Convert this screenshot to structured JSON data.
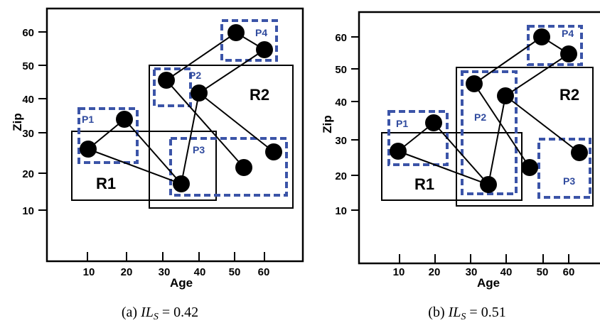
{
  "colors": {
    "partition": "#3b54a8",
    "region": "#000000",
    "point": "#000000"
  },
  "panels": [
    {
      "id": "a",
      "caption_prefix": "(a) ",
      "caption_var": "IL",
      "caption_sub": "S",
      "caption_value": " = 0.42",
      "x_label": "Age",
      "y_label": "Zip",
      "x_ticks": [
        "10",
        "20",
        "30",
        "40",
        "50",
        "60"
      ],
      "y_ticks": [
        "10",
        "20",
        "30",
        "40",
        "50",
        "60"
      ],
      "regions": [
        {
          "label": "R1"
        },
        {
          "label": "R2"
        }
      ],
      "partitions": [
        {
          "label": "P1"
        },
        {
          "label": "P2"
        },
        {
          "label": "P3"
        },
        {
          "label": "P4"
        }
      ]
    },
    {
      "id": "b",
      "caption_prefix": "(b) ",
      "caption_var": "IL",
      "caption_sub": "S",
      "caption_value": " = 0.51",
      "x_label": "Age",
      "y_label": "Zip",
      "x_ticks": [
        "10",
        "20",
        "30",
        "40",
        "50",
        "60"
      ],
      "y_ticks": [
        "10",
        "20",
        "30",
        "40",
        "50",
        "60"
      ],
      "regions": [
        {
          "label": "R1"
        },
        {
          "label": "R2"
        }
      ],
      "partitions": [
        {
          "label": "P1"
        },
        {
          "label": "P2"
        },
        {
          "label": "P3"
        },
        {
          "label": "P4"
        }
      ]
    }
  ]
}
